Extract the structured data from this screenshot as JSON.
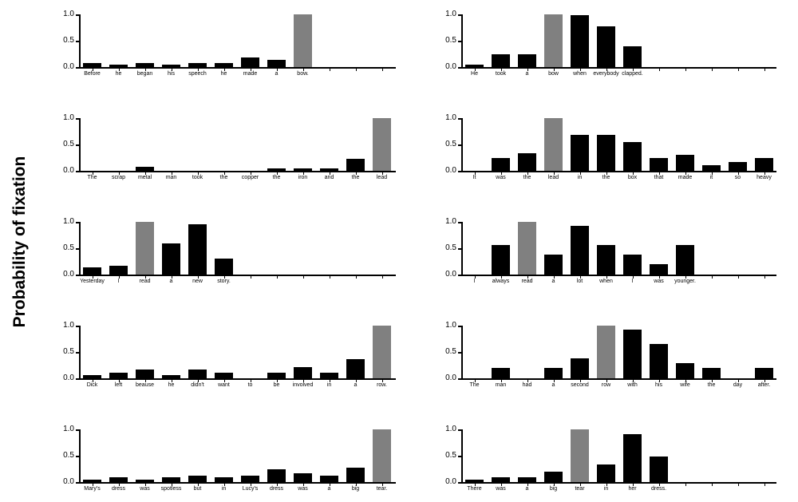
{
  "figure": {
    "ylabel": "Probability of fixation",
    "colors": {
      "bar": "#000000",
      "target_bar": "#808080",
      "axis": "#000000"
    }
  },
  "chart_data": [
    {
      "type": "bar",
      "position": "row1-left",
      "categories": [
        "Before",
        "he",
        "began",
        "his",
        "speech",
        "he",
        "made",
        "a",
        "bow.",
        "",
        "",
        ""
      ],
      "values": [
        0.07,
        0.04,
        0.07,
        0.04,
        0.07,
        0.07,
        0.18,
        0.14,
        1.0,
        null,
        null,
        null
      ],
      "target_index": 8,
      "ylabel": "Probability of fixation",
      "yticks": [
        "0.0",
        "0.5",
        "1.0"
      ],
      "ylim": [
        0,
        1
      ]
    },
    {
      "type": "bar",
      "position": "row1-right",
      "categories": [
        "He",
        "took",
        "a",
        "bow",
        "when",
        "everybody",
        "clapped.",
        "",
        "",
        "",
        "",
        ""
      ],
      "values": [
        0.04,
        0.25,
        0.25,
        1.0,
        0.98,
        0.77,
        0.39,
        null,
        null,
        null,
        null,
        null
      ],
      "target_index": 3,
      "ylabel": "Probability of fixation",
      "yticks": [
        "0.0",
        "0.5",
        "1.0"
      ],
      "ylim": [
        0,
        1
      ]
    },
    {
      "type": "bar",
      "position": "row2-left",
      "categories": [
        "The",
        "scrap",
        "metal",
        "man",
        "took",
        "the",
        "copper",
        "the",
        "iron",
        "and",
        "the",
        "lead"
      ],
      "values": [
        0,
        0,
        0.08,
        0,
        0,
        0,
        0,
        0.05,
        0.05,
        0.05,
        0.22,
        1.0
      ],
      "target_index": 11,
      "ylabel": "Probability of fixation",
      "yticks": [
        "0.0",
        "0.5",
        "1.0"
      ],
      "ylim": [
        0,
        1
      ]
    },
    {
      "type": "bar",
      "position": "row2-right",
      "categories": [
        "It",
        "was",
        "the",
        "lead",
        "in",
        "the",
        "box",
        "that",
        "made",
        "it",
        "so",
        "heavy"
      ],
      "values": [
        0,
        0.25,
        0.34,
        1.0,
        0.68,
        0.68,
        0.54,
        0.25,
        0.3,
        0.11,
        0.16,
        0.25
      ],
      "target_index": 3,
      "ylabel": "Probability of fixation",
      "yticks": [
        "0.0",
        "0.5",
        "1.0"
      ],
      "ylim": [
        0,
        1
      ]
    },
    {
      "type": "bar",
      "position": "row3-left",
      "categories": [
        "Yesterday",
        "I",
        "read",
        "a",
        "new",
        "story.",
        "",
        "",
        "",
        "",
        "",
        ""
      ],
      "values": [
        0.14,
        0.17,
        1.0,
        0.59,
        0.96,
        0.3,
        null,
        null,
        null,
        null,
        null,
        null
      ],
      "target_index": 2,
      "ylabel": "Probability of fixation",
      "yticks": [
        "0.0",
        "0.5",
        "1.0"
      ],
      "ylim": [
        0,
        1
      ]
    },
    {
      "type": "bar",
      "position": "row3-right",
      "categories": [
        "I",
        "always",
        "read",
        "a",
        "lot",
        "when",
        "I",
        "was",
        "younger.",
        "",
        "",
        ""
      ],
      "values": [
        0,
        0.56,
        1.0,
        0.38,
        0.92,
        0.56,
        0.38,
        0.19,
        0.56,
        null,
        null,
        null
      ],
      "target_index": 2,
      "ylabel": "Probability of fixation",
      "yticks": [
        "0.0",
        "0.5",
        "1.0"
      ],
      "ylim": [
        0,
        1
      ]
    },
    {
      "type": "bar",
      "position": "row4-left",
      "categories": [
        "Dick",
        "left",
        "beause",
        "he",
        "didn't",
        "want",
        "to",
        "be",
        "involved",
        "in",
        "a",
        "row."
      ],
      "values": [
        0.06,
        0.11,
        0.16,
        0.06,
        0.16,
        0.11,
        0,
        0.11,
        0.21,
        0.11,
        0.36,
        1.0
      ],
      "target_index": 11,
      "ylabel": "Probability of fixation",
      "yticks": [
        "0.0",
        "0.5",
        "1.0"
      ],
      "ylim": [
        0,
        1
      ]
    },
    {
      "type": "bar",
      "position": "row4-right",
      "categories": [
        "The",
        "man",
        "had",
        "a",
        "second",
        "row",
        "with",
        "his",
        "wife",
        "the",
        "day",
        "after."
      ],
      "values": [
        0,
        0.2,
        0,
        0.2,
        0.38,
        1.0,
        0.92,
        0.65,
        0.29,
        0.2,
        0,
        0.2
      ],
      "target_index": 5,
      "ylabel": "Probability of fixation",
      "yticks": [
        "0.0",
        "0.5",
        "1.0"
      ],
      "ylim": [
        0,
        1
      ]
    },
    {
      "type": "bar",
      "position": "row5-left",
      "categories": [
        "Mary's",
        "dress",
        "was",
        "spotless",
        "but",
        "in",
        "Lucy's",
        "dress",
        "was",
        "a",
        "big",
        "tear."
      ],
      "values": [
        0.05,
        0.09,
        0.05,
        0.09,
        0.12,
        0.09,
        0.12,
        0.24,
        0.16,
        0.12,
        0.27,
        1.0
      ],
      "target_index": 11,
      "ylabel": "Probability of fixation",
      "yticks": [
        "0.0",
        "0.5",
        "1.0"
      ],
      "ylim": [
        0,
        1
      ]
    },
    {
      "type": "bar",
      "position": "row5-right",
      "categories": [
        "There",
        "was",
        "a",
        "big",
        "tear",
        "in",
        "her",
        "dress.",
        "",
        "",
        "",
        ""
      ],
      "values": [
        0.05,
        0.09,
        0.09,
        0.19,
        1.0,
        0.33,
        0.91,
        0.48,
        null,
        null,
        null,
        null
      ],
      "target_index": 4,
      "ylabel": "Probability of fixation",
      "yticks": [
        "0.0",
        "0.5",
        "1.0"
      ],
      "ylim": [
        0,
        1
      ]
    }
  ]
}
